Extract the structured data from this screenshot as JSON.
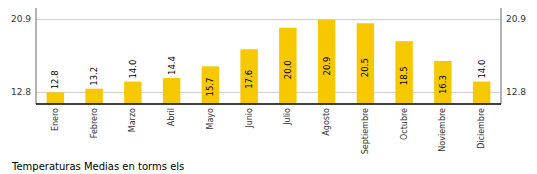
{
  "chart_data": {
    "type": "bar",
    "title": "Temperaturas Medias en torms els",
    "categories": [
      "Enero",
      "Febrero",
      "Marzo",
      "Abril",
      "Mayo",
      "Junio",
      "Julio",
      "Agosto",
      "Septiembre",
      "Octubre",
      "Noviembre",
      "Diciembre"
    ],
    "values": [
      12.8,
      13.2,
      14.0,
      14.4,
      15.7,
      17.6,
      20.0,
      20.9,
      20.5,
      18.5,
      16.3,
      14.0
    ],
    "value_labels": [
      "12.8",
      "13.2",
      "14.0",
      "14.4",
      "15.7",
      "17.6",
      "20.0",
      "20.9",
      "20.5",
      "18.5",
      "16.3",
      "14.0"
    ],
    "color": "#F5C800",
    "ylim": [
      11.5,
      22.2
    ],
    "yticks": [
      12.8,
      20.9
    ],
    "grid": true,
    "data_labels": true
  }
}
